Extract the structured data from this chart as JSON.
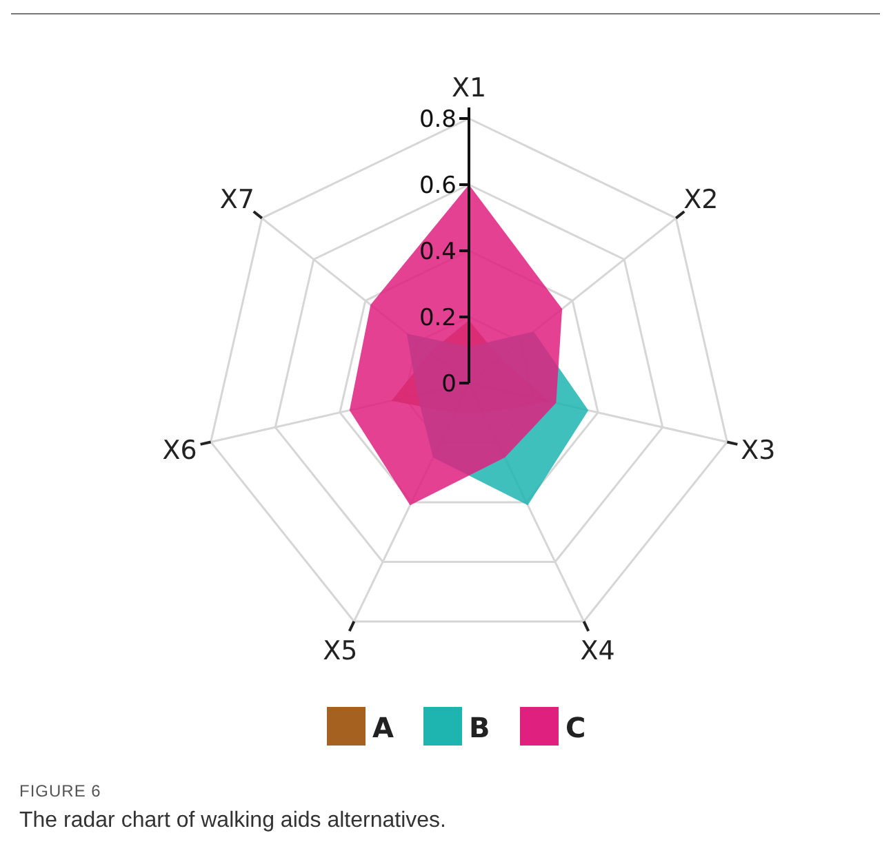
{
  "chart_data": {
    "type": "radar",
    "categories": [
      "X1",
      "X2",
      "X3",
      "X4",
      "X5",
      "X6",
      "X7"
    ],
    "series": [
      {
        "name": "A",
        "color": "#a5611f",
        "values": [
          0.19,
          0.12,
          0.25,
          0.1,
          0.1,
          0.24,
          0.15
        ]
      },
      {
        "name": "B",
        "color": "#1eb5b0",
        "values": [
          0.11,
          0.25,
          0.37,
          0.41,
          0.25,
          0.16,
          0.24
        ]
      },
      {
        "name": "C",
        "color": "#e0207f",
        "values": [
          0.6,
          0.36,
          0.27,
          0.25,
          0.41,
          0.37,
          0.38
        ]
      }
    ],
    "ylim": [
      0,
      0.8
    ],
    "yticks": [
      0,
      0.2,
      0.4,
      0.6,
      0.8
    ],
    "grid": true,
    "legend": "bottom",
    "annotations": [
      "FIGURE 6",
      "The radar chart of walking aids alternatives."
    ]
  }
}
